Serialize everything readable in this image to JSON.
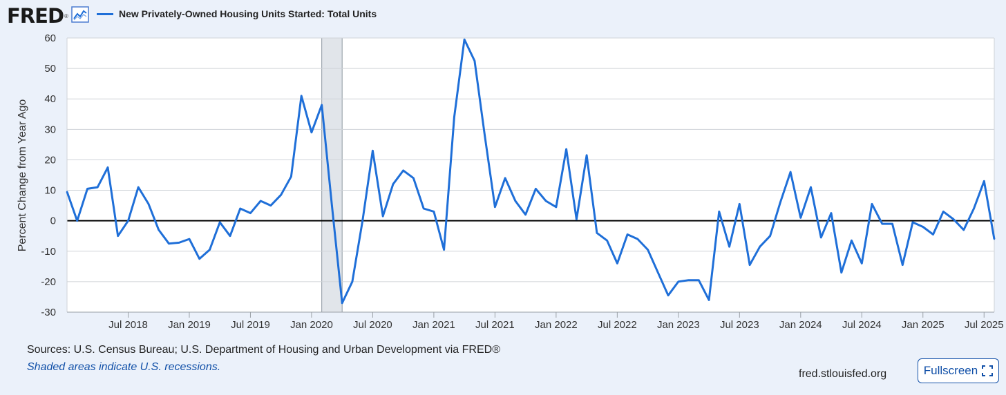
{
  "brand": {
    "logo_text": "FRED",
    "logo_mark": "®"
  },
  "chart_data": {
    "type": "line",
    "title": "New Privately-Owned Housing Units Started: Total Units",
    "ylabel": "Percent Change from Year Ago",
    "xlabel": "",
    "ylim": [
      -30,
      60
    ],
    "yticks": [
      60,
      50,
      40,
      30,
      20,
      10,
      0,
      -10,
      -20,
      -30
    ],
    "xtick_labels": [
      "Jul 2018",
      "Jan 2019",
      "Jul 2019",
      "Jan 2020",
      "Jul 2020",
      "Jan 2021",
      "Jul 2021",
      "Jan 2022",
      "Jul 2022",
      "Jan 2023",
      "Jul 2023",
      "Jan 2024",
      "Jul 2024",
      "Jan 2025",
      "Jul 2025"
    ],
    "recession": {
      "start": "Feb 2020",
      "end": "Apr 2020"
    },
    "series": [
      {
        "name": "New Privately-Owned Housing Units Started: Total Units",
        "color": "#1f6fd8",
        "start": "Jan 2018",
        "frequency": "monthly",
        "values": [
          9.5,
          0,
          10.5,
          11,
          17.5,
          -5,
          0,
          11,
          5.5,
          -3,
          -7.5,
          -7.2,
          -6,
          -12.5,
          -9.5,
          -0.5,
          -5,
          4,
          2.5,
          6.5,
          5,
          8.5,
          14.5,
          41,
          29,
          38,
          5,
          -27,
          -20,
          0,
          23,
          1.5,
          12,
          16.5,
          14,
          4,
          3,
          -9.5,
          34,
          59.5,
          52.5,
          28,
          4.5,
          14,
          6.5,
          2,
          10.5,
          6.5,
          4.5,
          23.5,
          0.5,
          21.5,
          -4,
          -6.5,
          -14,
          -4.5,
          -6,
          -9.5,
          -17,
          -24.5,
          -20,
          -19.5,
          -19.5,
          -26,
          3,
          -8.5,
          5.5,
          -14.5,
          -8.5,
          -5,
          6,
          16,
          1,
          11,
          -5.5,
          2.5,
          -17,
          -6.5,
          -14,
          5.5,
          -1,
          -1,
          -14.5,
          -0.5,
          -2,
          -4.5,
          3,
          0.5,
          -3,
          4,
          13,
          -6
        ]
      }
    ]
  },
  "footer": {
    "sources": "Sources: U.S. Census Bureau; U.S. Department of Housing and Urban Development via FRED®",
    "note": "Shaded areas indicate U.S. recessions.",
    "site": "fred.stlouisfed.org",
    "fullscreen_label": "Fullscreen"
  }
}
